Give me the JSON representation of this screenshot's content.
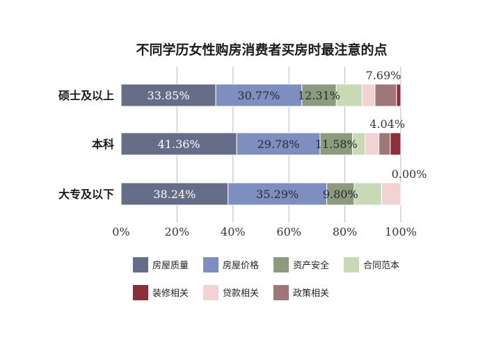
{
  "chart_data": {
    "type": "bar",
    "orientation": "horizontal",
    "stacked": true,
    "title": "不同学历女性购房消费者买房时最注意的点",
    "xlabel": "",
    "ylabel": "",
    "xlim": [
      0,
      100
    ],
    "x_ticks": [
      0,
      20,
      40,
      60,
      80,
      100
    ],
    "x_tick_labels": [
      "0%",
      "20%",
      "40%",
      "60%",
      "80%",
      "100%"
    ],
    "grid": "vertical gridlines",
    "legend_position": "bottom",
    "categories": [
      "硕士及以上",
      "本科",
      "大专及以下"
    ],
    "series": [
      {
        "name": "房屋质量",
        "color": "#656d89",
        "label_color": "#ffffff",
        "values": [
          33.85,
          41.36,
          38.24
        ],
        "labels": [
          "33.85%",
          "41.36%",
          "38.24%"
        ]
      },
      {
        "name": "房屋价格",
        "color": "#7f8ec0",
        "label_color": "#2a2a2a",
        "values": [
          30.77,
          29.78,
          35.29
        ],
        "labels": [
          "30.77%",
          "29.78%",
          "35.29%"
        ]
      },
      {
        "name": "资产安全",
        "color": "#8c9a7e",
        "label_color": "#2a2a2a",
        "values": [
          12.31,
          11.58,
          9.8
        ],
        "labels": [
          "12.31%",
          "11.58%",
          "9.80%"
        ]
      },
      {
        "name": "合同范本",
        "color": "#c9d9b5",
        "label_color": "#2a2a2a",
        "values": [
          9.23,
          4.56,
          9.8
        ],
        "labels": [
          "",
          "",
          ""
        ]
      },
      {
        "name": "贷款相关",
        "color": "#f3d2d4",
        "label_color": "#2a2a2a",
        "values": [
          4.62,
          4.91,
          6.87
        ],
        "labels": [
          "",
          "",
          ""
        ]
      },
      {
        "name": "政策相关",
        "color": "#a0757b",
        "label_color": "#2a2a2a",
        "values": [
          7.69,
          4.04,
          0.0
        ],
        "labels": [
          "7.69%",
          "4.04%",
          "0.00%"
        ],
        "label_position": "above"
      },
      {
        "name": "装修相关",
        "color": "#8c2f3a",
        "label_color": "#2a2a2a",
        "values": [
          1.53,
          3.77,
          0.0
        ],
        "labels": [
          "",
          "",
          ""
        ]
      }
    ],
    "legend_order": [
      "房屋质量",
      "房屋价格",
      "资产安全",
      "合同范本",
      "装修相关",
      "贷款相关",
      "政策相关"
    ]
  }
}
